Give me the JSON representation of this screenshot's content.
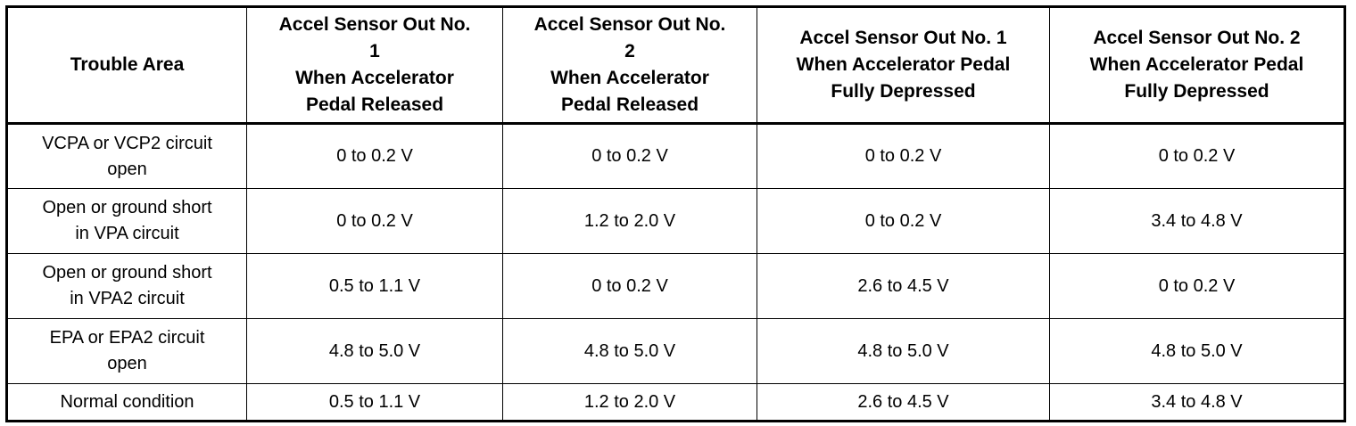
{
  "table": {
    "header": [
      [
        "Trouble Area"
      ],
      [
        "Accel Sensor Out No.",
        "1",
        "When Accelerator",
        "Pedal Released"
      ],
      [
        "Accel Sensor Out No.",
        "2",
        "When Accelerator",
        "Pedal Released"
      ],
      [
        "Accel Sensor Out No. 1",
        "When Accelerator Pedal",
        "Fully Depressed"
      ],
      [
        "Accel Sensor Out No. 2",
        "When Accelerator Pedal",
        "Fully Depressed"
      ]
    ],
    "rows": [
      [
        [
          "VCPA or VCP2 circuit",
          "open"
        ],
        "0 to 0.2 V",
        "0 to 0.2 V",
        "0 to 0.2 V",
        "0 to 0.2 V"
      ],
      [
        [
          "Open or ground short",
          "in VPA circuit"
        ],
        "0 to 0.2 V",
        "1.2 to 2.0 V",
        "0 to 0.2 V",
        "3.4 to 4.8 V"
      ],
      [
        [
          "Open or ground short",
          "in VPA2 circuit"
        ],
        "0.5 to 1.1 V",
        "0 to 0.2 V",
        "2.6 to 4.5 V",
        "0 to 0.2 V"
      ],
      [
        [
          "EPA or EPA2 circuit",
          "open"
        ],
        "4.8 to 5.0 V",
        "4.8 to 5.0 V",
        "4.8 to 5.0 V",
        "4.8 to 5.0 V"
      ],
      [
        [
          "Normal condition"
        ],
        "0.5 to 1.1 V",
        "1.2 to 2.0 V",
        "2.6 to 4.5 V",
        "3.4 to 4.8 V"
      ]
    ]
  }
}
